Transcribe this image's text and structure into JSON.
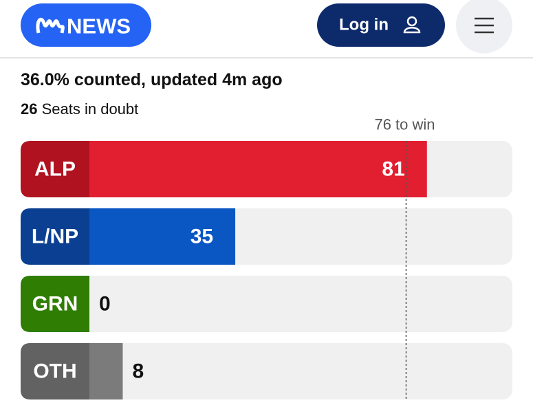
{
  "header": {
    "logo": "NEWS",
    "login": "Log in"
  },
  "chart_data": {
    "type": "bar",
    "orientation": "horizontal",
    "status": "36.0% counted, updated 4m ago",
    "seats_in_doubt": {
      "value": 26,
      "label": "Seats in doubt"
    },
    "win_line": {
      "value": 76,
      "label": "76 to win"
    },
    "categories": [
      "ALP",
      "L/NP",
      "GRN",
      "OTH"
    ],
    "values": [
      81,
      35,
      0,
      8
    ],
    "colors": [
      "#e11f30",
      "#0a56c2",
      "#3f9c05",
      "#7b7b7b"
    ],
    "label_colors": [
      "#b0121f",
      "#0a3f92",
      "#2f7d03",
      "#626262"
    ],
    "track_color": "#f0f0f0",
    "xlim": [
      0,
      101.5
    ]
  }
}
